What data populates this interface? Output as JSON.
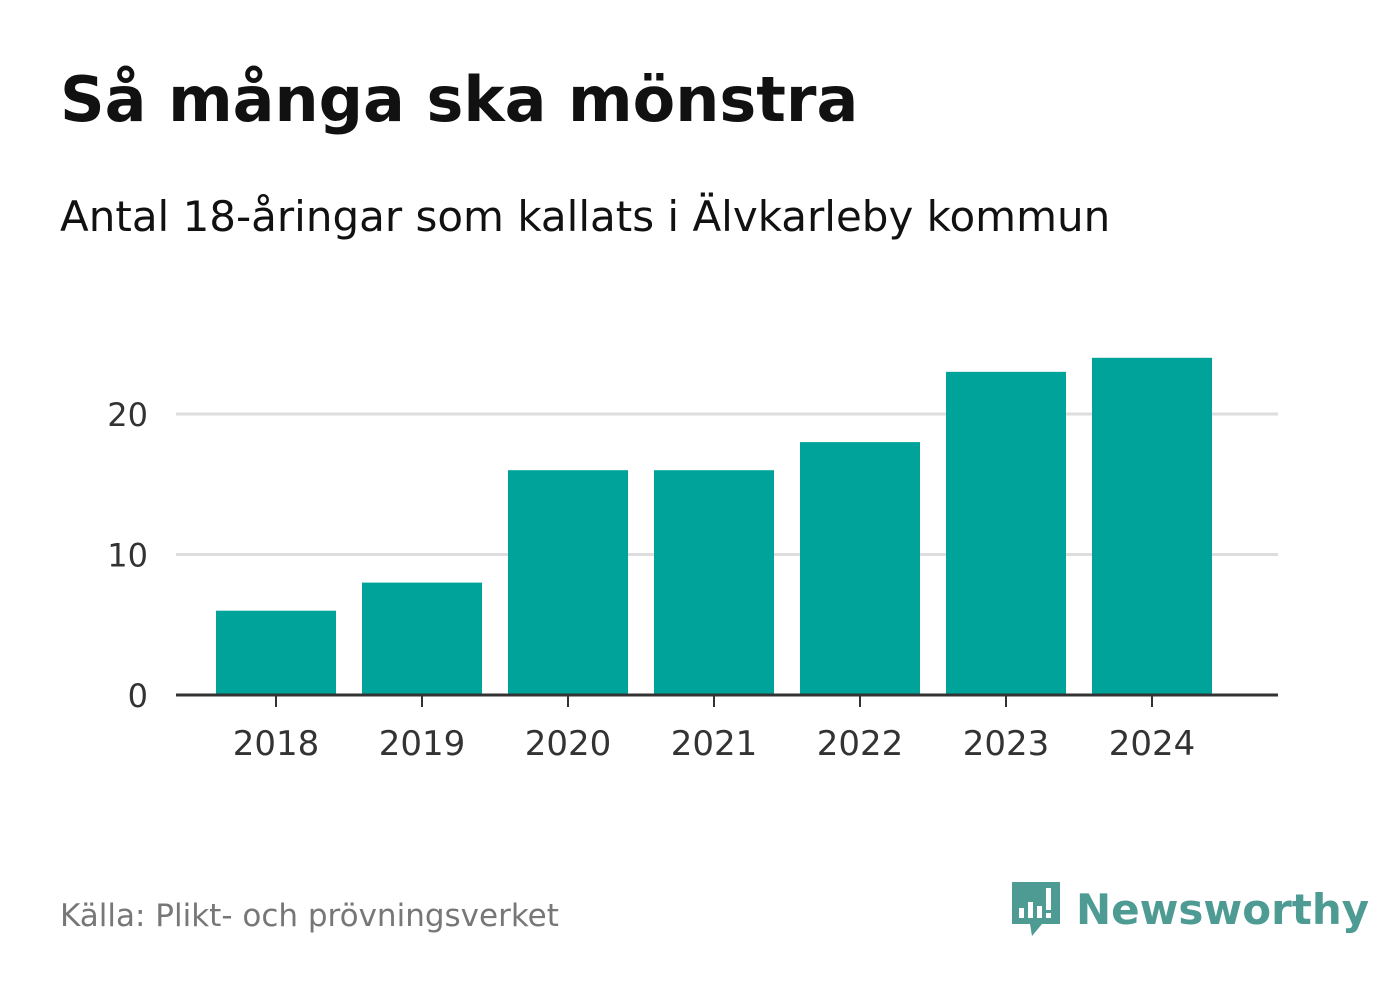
{
  "header": {
    "title": "Så många ska mönstra",
    "subtitle": "Antal 18-åringar som kallats i Älvkarleby kommun"
  },
  "footer": {
    "source": "Källa: Plikt- och prövningsverket",
    "brand_name": "Newsworthy"
  },
  "icons": {
    "brand_logo": "newsworthy-chart-bubble-icon"
  },
  "colors": {
    "bar": "#00a399",
    "grid": "#dddddd",
    "axis": "#333333",
    "brand": "#4e9b94"
  },
  "chart_data": {
    "type": "bar",
    "categories": [
      "2018",
      "2019",
      "2020",
      "2021",
      "2022",
      "2023",
      "2024"
    ],
    "values": [
      6,
      8,
      16,
      16,
      18,
      23,
      24
    ],
    "title": "Så många ska mönstra",
    "subtitle": "Antal 18-åringar som kallats i Älvkarleby kommun",
    "xlabel": "",
    "ylabel": "",
    "ylim": [
      0,
      25
    ],
    "yticks": [
      0,
      10,
      20
    ],
    "grid": true,
    "legend": "none"
  }
}
